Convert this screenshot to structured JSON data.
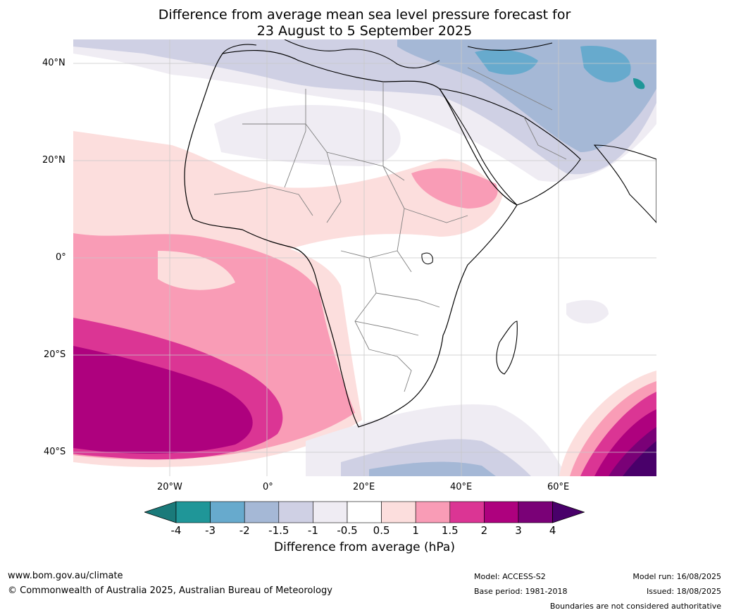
{
  "title": {
    "line1": "Difference from average mean sea level pressure forecast for",
    "line2": "23 August to 5 September 2025"
  },
  "map": {
    "latitude_labels": [
      "40°N",
      "20°N",
      "0°",
      "20°S",
      "40°S"
    ],
    "longitude_labels": [
      "20°W",
      "0°",
      "20°E",
      "40°E",
      "60°E"
    ],
    "gridlines": true
  },
  "colorbar": {
    "label": "Difference from average (hPa)",
    "ticks": [
      "-4",
      "-3",
      "-2",
      "-1.5",
      "-1",
      "-0.5",
      "0.5",
      "1",
      "1.5",
      "2",
      "3",
      "4"
    ],
    "colors": [
      "#1a7a7a",
      "#1f9698",
      "#67aacd",
      "#a5b8d6",
      "#cfd0e4",
      "#efecf3",
      "#ffffff",
      "#fcdedd",
      "#f99cb6",
      "#db3594",
      "#ae017e",
      "#7a0177",
      "#49006a"
    ]
  },
  "footer": {
    "url": "www.bom.gov.au/climate",
    "copyright": "© Commonwealth of Australia 2025, Australian Bureau of Meteorology",
    "model": "Model: ACCESS-S2",
    "base_period": "Base period: 1981-2018",
    "model_run": "Model run: 16/08/2025",
    "issued": "Issued: 18/08/2025",
    "disclaimer": "Boundaries are not considered authoritative"
  }
}
